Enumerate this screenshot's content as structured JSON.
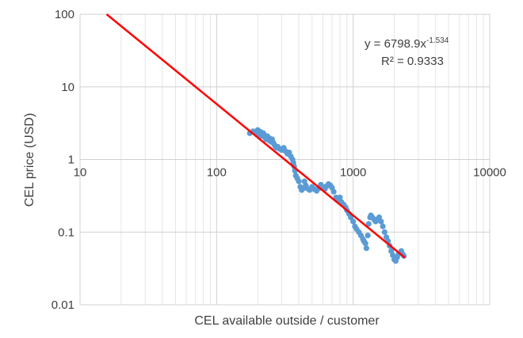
{
  "chart_data": {
    "type": "scatter",
    "xlabel": "CEL available outside / customer",
    "ylabel": "CEL price (USD)",
    "x_scale": "log",
    "y_scale": "log",
    "xlim": [
      10,
      10000
    ],
    "ylim": [
      0.01,
      100
    ],
    "x_ticks": [
      "10",
      "100",
      "1000",
      "10000"
    ],
    "y_ticks": [
      "100",
      "10",
      "1",
      "0.1",
      "0.01"
    ],
    "grid": true,
    "legend": "none",
    "colors": {
      "points": "#5b9bd5",
      "trendline": "#ff0000"
    },
    "trendline": {
      "type": "power",
      "coefficient": 6798.9,
      "exponent": -1.534,
      "equation_prefix": "y = 6798.9x",
      "equation_exponent": "-1.534",
      "r_squared_label": "R² = 0.9333"
    },
    "series": [
      {
        "points": [
          [
            175,
            2.3
          ],
          [
            185,
            2.45
          ],
          [
            195,
            2.35
          ],
          [
            200,
            2.55
          ],
          [
            205,
            2.2
          ],
          [
            210,
            2.4
          ],
          [
            215,
            2.1
          ],
          [
            220,
            2.3
          ],
          [
            225,
            2.05
          ],
          [
            230,
            1.9
          ],
          [
            235,
            2.1
          ],
          [
            240,
            1.85
          ],
          [
            245,
            1.95
          ],
          [
            250,
            1.75
          ],
          [
            255,
            1.9
          ],
          [
            260,
            1.7
          ],
          [
            265,
            1.6
          ],
          [
            270,
            1.5
          ],
          [
            275,
            1.45
          ],
          [
            280,
            1.5
          ],
          [
            290,
            1.4
          ],
          [
            300,
            1.35
          ],
          [
            310,
            1.45
          ],
          [
            320,
            1.3
          ],
          [
            330,
            1.2
          ],
          [
            340,
            1.25
          ],
          [
            350,
            1.1
          ],
          [
            360,
            1.0
          ],
          [
            365,
            0.9
          ],
          [
            370,
            0.8
          ],
          [
            375,
            0.7
          ],
          [
            380,
            0.6
          ],
          [
            390,
            0.55
          ],
          [
            400,
            0.5
          ],
          [
            410,
            0.42
          ],
          [
            420,
            0.38
          ],
          [
            430,
            0.4
          ],
          [
            440,
            0.5
          ],
          [
            450,
            0.44
          ],
          [
            460,
            0.4
          ],
          [
            480,
            0.38
          ],
          [
            500,
            0.42
          ],
          [
            520,
            0.39
          ],
          [
            540,
            0.37
          ],
          [
            560,
            0.4
          ],
          [
            580,
            0.45
          ],
          [
            600,
            0.42
          ],
          [
            620,
            0.39
          ],
          [
            640,
            0.43
          ],
          [
            660,
            0.46
          ],
          [
            680,
            0.44
          ],
          [
            700,
            0.41
          ],
          [
            720,
            0.36
          ],
          [
            750,
            0.3
          ],
          [
            780,
            0.28
          ],
          [
            800,
            0.3
          ],
          [
            820,
            0.26
          ],
          [
            850,
            0.24
          ],
          [
            880,
            0.22
          ],
          [
            900,
            0.2
          ],
          [
            930,
            0.18
          ],
          [
            960,
            0.16
          ],
          [
            1000,
            0.14
          ],
          [
            1030,
            0.12
          ],
          [
            1060,
            0.11
          ],
          [
            1100,
            0.1
          ],
          [
            1140,
            0.09
          ],
          [
            1180,
            0.08
          ],
          [
            1200,
            0.075
          ],
          [
            1230,
            0.07
          ],
          [
            1250,
            0.06
          ],
          [
            1280,
            0.09
          ],
          [
            1300,
            0.13
          ],
          [
            1330,
            0.16
          ],
          [
            1350,
            0.17
          ],
          [
            1380,
            0.16
          ],
          [
            1420,
            0.15
          ],
          [
            1460,
            0.14
          ],
          [
            1500,
            0.15
          ],
          [
            1550,
            0.16
          ],
          [
            1600,
            0.14
          ],
          [
            1650,
            0.12
          ],
          [
            1700,
            0.1
          ],
          [
            1750,
            0.085
          ],
          [
            1800,
            0.075
          ],
          [
            1850,
            0.065
          ],
          [
            1900,
            0.055
          ],
          [
            1950,
            0.048
          ],
          [
            2000,
            0.042
          ],
          [
            2050,
            0.04
          ],
          [
            2100,
            0.045
          ],
          [
            2150,
            0.05
          ],
          [
            2200,
            0.052
          ],
          [
            2250,
            0.055
          ],
          [
            2300,
            0.05
          ],
          [
            2350,
            0.047
          ]
        ]
      }
    ]
  }
}
